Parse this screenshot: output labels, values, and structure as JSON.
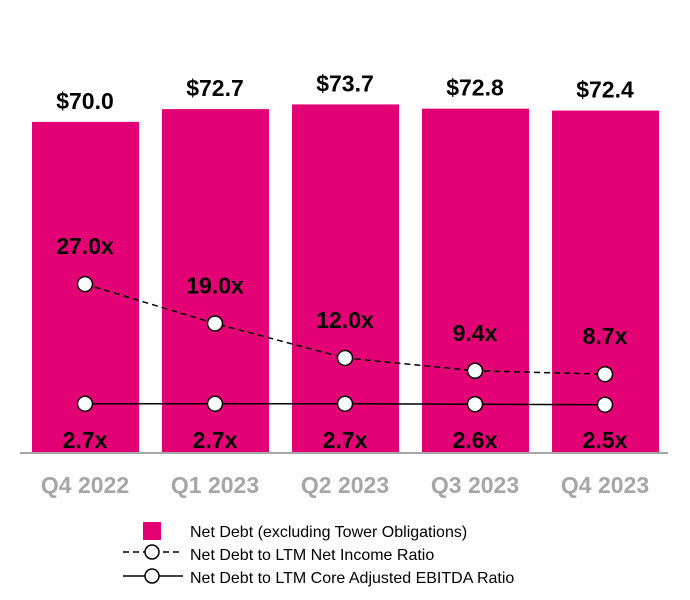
{
  "chart_data": {
    "type": "bar",
    "categories": [
      "Q4 2022",
      "Q1 2023",
      "Q2 2023",
      "Q3 2023",
      "Q4 2023"
    ],
    "series": [
      {
        "name": "Net Debt (excluding Tower Obligations)",
        "type": "bar",
        "values": [
          70.0,
          72.7,
          73.7,
          72.8,
          72.4
        ],
        "labels": [
          "$70.0",
          "$72.7",
          "$73.7",
          "$72.8",
          "$72.4"
        ],
        "color": "#e20074"
      },
      {
        "name": "Net Debt to LTM Net Income Ratio",
        "type": "line",
        "style": "dashed",
        "axis": "secondary",
        "values": [
          27.0,
          19.0,
          12.0,
          9.4,
          8.7
        ],
        "labels": [
          "27.0x",
          "19.0x",
          "12.0x",
          "9.4x",
          "8.7x"
        ]
      },
      {
        "name": "Net Debt to LTM Core Adjusted EBITDA Ratio",
        "type": "line",
        "style": "solid",
        "axis": "secondary",
        "values": [
          2.7,
          2.7,
          2.7,
          2.6,
          2.5
        ],
        "labels": [
          "2.7x",
          "2.7x",
          "2.7x",
          "2.6x",
          "2.5x"
        ]
      }
    ],
    "legend_position": "bottom",
    "grid": false
  }
}
